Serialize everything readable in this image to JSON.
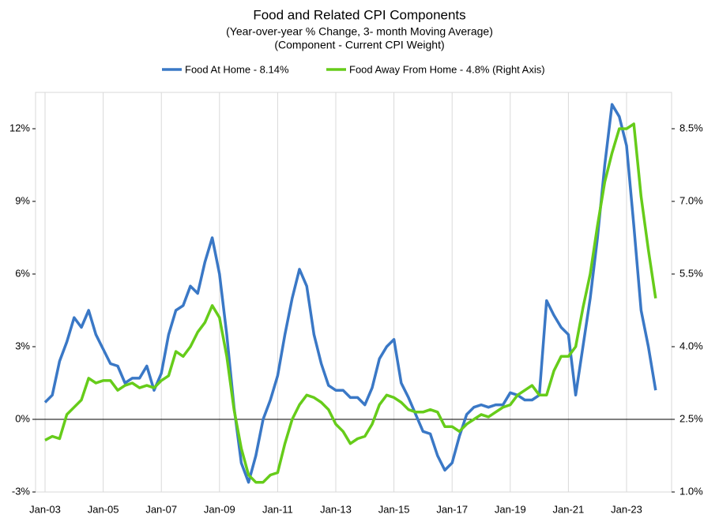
{
  "chart_data": {
    "type": "line",
    "title": "Food and Related CPI Components",
    "subtitle": [
      "(Year-over-year % Change, 3- month Moving Average)",
      "(Component - Current CPI Weight)"
    ],
    "categories": [
      "Jan-03",
      null,
      null,
      null,
      null,
      null,
      null,
      null,
      "Jan-05",
      null,
      null,
      null,
      null,
      null,
      null,
      null,
      "Jan-07",
      null,
      null,
      null,
      null,
      null,
      null,
      null,
      "Jan-09",
      null,
      null,
      null,
      null,
      null,
      null,
      null,
      "Jan-11",
      null,
      null,
      null,
      null,
      null,
      null,
      null,
      "Jan-13",
      null,
      null,
      null,
      null,
      null,
      null,
      null,
      "Jan-15",
      null,
      null,
      null,
      null,
      null,
      null,
      null,
      "Jan-17",
      null,
      null,
      null,
      null,
      null,
      null,
      null,
      "Jan-19",
      null,
      null,
      null,
      null,
      null,
      null,
      null,
      "Jan-21",
      null,
      null,
      null,
      null,
      null,
      null,
      null,
      "Jan-23",
      null,
      null,
      null,
      null
    ],
    "series": [
      {
        "name": "Food At Home - 8.14%",
        "color": "#3a78c6",
        "axis": "y",
        "values": [
          0.7,
          1.0,
          2.4,
          3.2,
          4.2,
          3.8,
          4.5,
          3.5,
          2.9,
          2.3,
          2.2,
          1.5,
          1.7,
          1.7,
          2.2,
          1.2,
          1.9,
          3.5,
          4.5,
          4.7,
          5.5,
          5.2,
          6.5,
          7.5,
          6.0,
          3.5,
          0.5,
          -1.8,
          -2.6,
          -1.5,
          0.0,
          0.8,
          1.8,
          3.5,
          5.0,
          6.2,
          5.5,
          3.5,
          2.3,
          1.4,
          1.2,
          1.2,
          0.9,
          0.9,
          0.6,
          1.3,
          2.5,
          3.0,
          3.3,
          1.5,
          0.9,
          0.2,
          -0.5,
          -0.6,
          -1.5,
          -2.1,
          -1.8,
          -0.7,
          0.2,
          0.5,
          0.6,
          0.5,
          0.6,
          0.6,
          1.1,
          1.0,
          0.8,
          0.8,
          1.0,
          4.9,
          4.3,
          3.8,
          3.5,
          1.0,
          3.0,
          5.0,
          7.5,
          10.5,
          13.0,
          12.5,
          11.3,
          8.0,
          4.5,
          3.0,
          1.2
        ]
      },
      {
        "name": "Food Away From Home - 4.8% (Right Axis)",
        "color": "#66cc1a",
        "axis": "y2",
        "values": [
          2.07,
          2.15,
          2.1,
          2.6,
          2.75,
          2.9,
          3.35,
          3.25,
          3.3,
          3.3,
          3.1,
          3.2,
          3.25,
          3.15,
          3.2,
          3.15,
          3.3,
          3.4,
          3.9,
          3.8,
          4.0,
          4.3,
          4.5,
          4.85,
          4.6,
          3.8,
          2.7,
          1.9,
          1.35,
          1.2,
          1.2,
          1.35,
          1.4,
          2.0,
          2.5,
          2.8,
          3.0,
          2.95,
          2.85,
          2.7,
          2.4,
          2.25,
          2.0,
          2.1,
          2.15,
          2.4,
          2.8,
          3.0,
          2.95,
          2.85,
          2.7,
          2.65,
          2.65,
          2.7,
          2.65,
          2.35,
          2.35,
          2.25,
          2.4,
          2.5,
          2.6,
          2.55,
          2.65,
          2.75,
          2.8,
          3.0,
          3.1,
          3.2,
          3.0,
          3.0,
          3.5,
          3.8,
          3.8,
          4.0,
          4.8,
          5.5,
          6.5,
          7.4,
          8.0,
          8.5,
          8.5,
          8.6,
          7.1,
          6.0,
          5.0
        ]
      }
    ],
    "ylim": [
      -3,
      13.5
    ],
    "yticks": [
      {
        "value": -3,
        "label": "-3%"
      },
      {
        "value": 0,
        "label": "0%"
      },
      {
        "value": 3,
        "label": "3%"
      },
      {
        "value": 6,
        "label": "6%"
      },
      {
        "value": 9,
        "label": "9%"
      },
      {
        "value": 12,
        "label": "12%"
      }
    ],
    "y2lim": [
      1.0,
      9.25
    ],
    "y2ticks": [
      {
        "value": 1.0,
        "label": "1.0%"
      },
      {
        "value": 2.5,
        "label": "2.5%"
      },
      {
        "value": 4.0,
        "label": "4.0%"
      },
      {
        "value": 5.5,
        "label": "5.5%"
      },
      {
        "value": 7.0,
        "label": "7.0%"
      },
      {
        "value": 8.5,
        "label": "8.5%"
      }
    ],
    "legend": "top"
  }
}
